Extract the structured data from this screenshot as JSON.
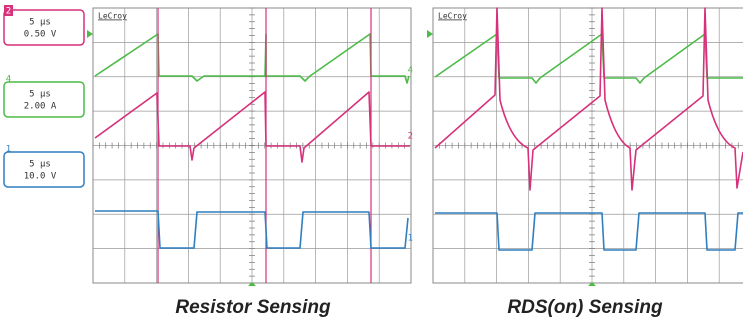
{
  "channels": [
    {
      "number": "2",
      "timebase": "5 μs",
      "scale": "0.50 V"
    },
    {
      "number": "4",
      "timebase": "5 μs",
      "scale": "2.00 A"
    },
    {
      "number": "1",
      "timebase": "5 μs",
      "scale": "10.0 V"
    }
  ],
  "scopes": [
    {
      "brand": "LeCroy",
      "trace_markers": [
        "4",
        "2",
        "1"
      ],
      "caption": "Resistor Sensing"
    },
    {
      "brand": "LeCroy",
      "caption": "RDS(on) Sensing"
    }
  ]
}
